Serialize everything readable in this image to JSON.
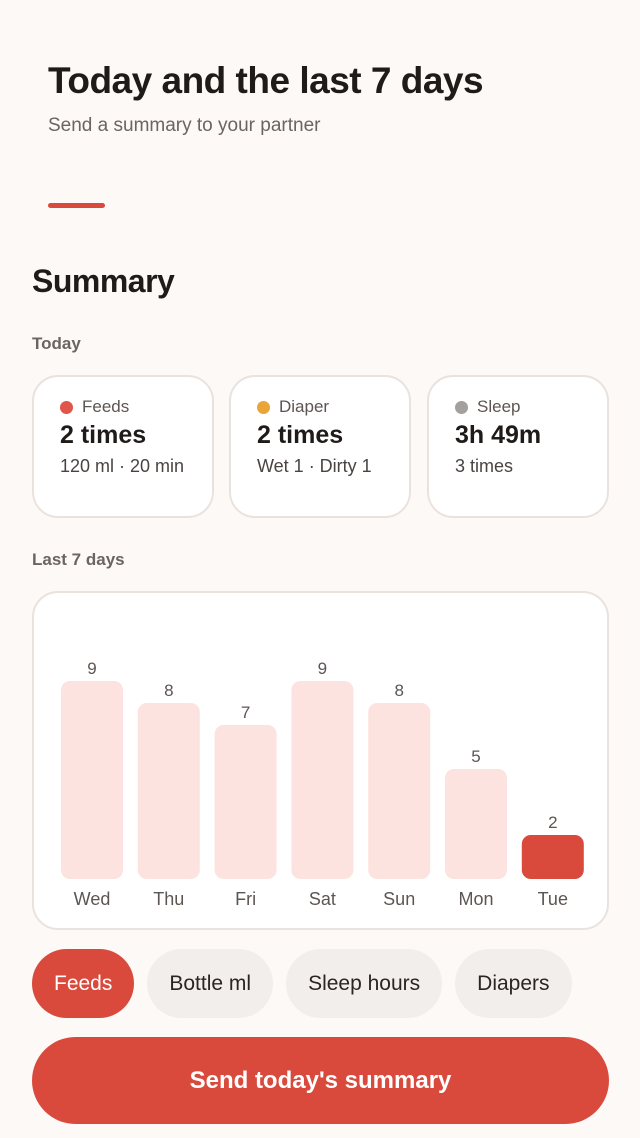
{
  "header": {
    "title": "Today and the last 7 days",
    "subtitle": "Send a summary to your partner"
  },
  "summary": {
    "title": "Summary",
    "today_label": "Today",
    "cards": [
      {
        "label": "Feeds",
        "value": "2 times",
        "sub": "120 ml · 20 min",
        "dot_color": "#e0564b"
      },
      {
        "label": "Diaper",
        "value": "2 times",
        "sub": "Wet 1 · Dirty 1",
        "dot_color": "#e9a537"
      },
      {
        "label": "Sleep",
        "value": "3h 49m",
        "sub": "3 times",
        "dot_color": "#a4a09e"
      }
    ],
    "week_label": "Last 7 days"
  },
  "chart_data": {
    "type": "bar",
    "categories": [
      "Wed",
      "Thu",
      "Fri",
      "Sat",
      "Sun",
      "Mon",
      "Tue"
    ],
    "values": [
      9,
      8,
      7,
      9,
      8,
      5,
      2
    ],
    "highlight_index": 6,
    "ylim": [
      0,
      9
    ],
    "bar_color": "#fde3df",
    "highlight_color": "#d94a3d"
  },
  "filters": {
    "items": [
      "Feeds",
      "Bottle ml",
      "Sleep hours",
      "Diapers"
    ],
    "active": "Feeds"
  },
  "actions": {
    "send_label": "Send today's summary"
  },
  "colors": {
    "accent": "#d94a3d",
    "background": "#fdf9f6"
  }
}
